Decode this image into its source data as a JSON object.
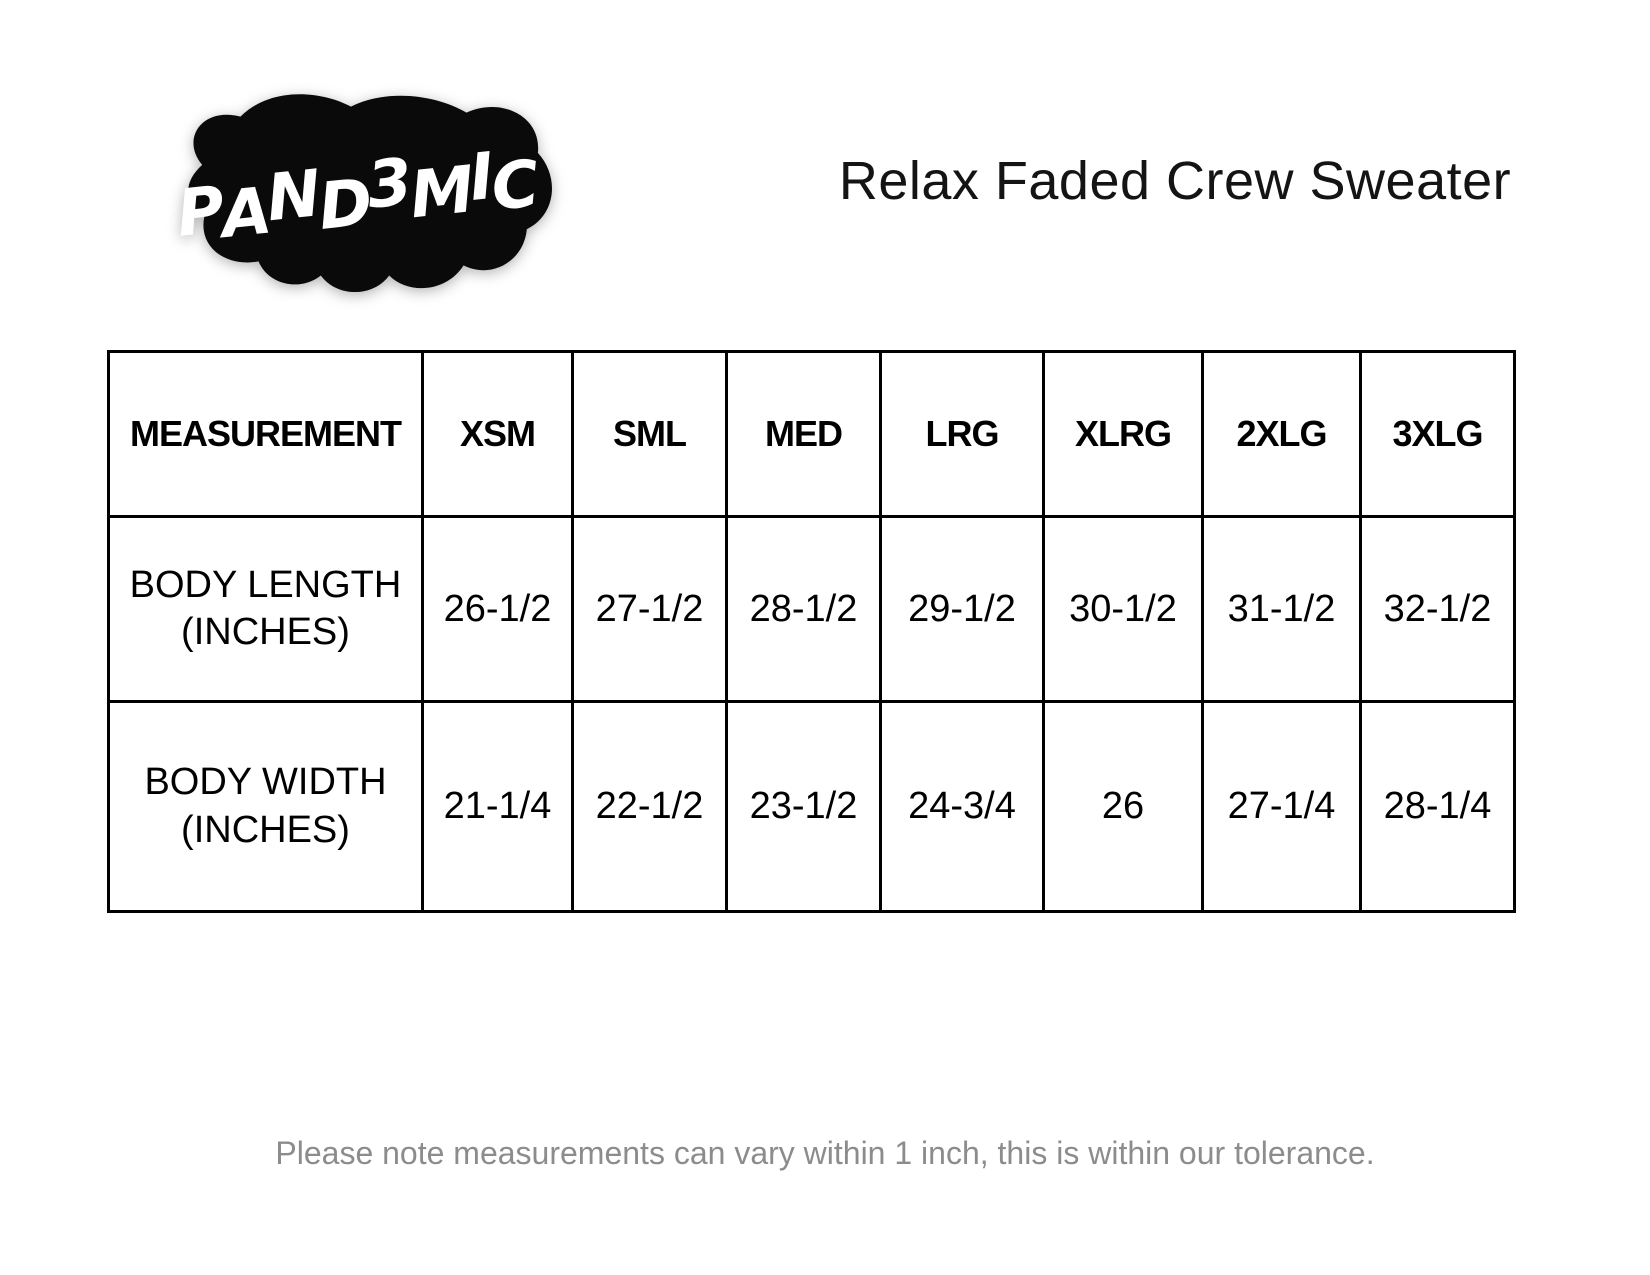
{
  "page": {
    "background": "#ffffff"
  },
  "brand": {
    "logo_text": "PAND3MIC",
    "logo_shape_color": "#0a0a0a",
    "logo_text_color": "#ffffff"
  },
  "header": {
    "title": "Relax Faded Crew Sweater",
    "title_color": "#141414"
  },
  "size_chart": {
    "border_color": "#000000",
    "text_color": "#000000",
    "columns": [
      "MEASUREMENT",
      "XSM",
      "SML",
      "MED",
      "LRG",
      "XLRG",
      "2XLG",
      "3XLG"
    ],
    "rows": [
      {
        "label": "BODY LENGTH (INCHES)",
        "label_lines": [
          "BODY LENGTH",
          "(INCHES)"
        ],
        "values": [
          "26-1/2",
          "27-1/2",
          "28-1/2",
          "29-1/2",
          "30-1/2",
          "31-1/2",
          "32-1/2"
        ]
      },
      {
        "label": "BODY WIDTH (INCHES)",
        "label_lines": [
          "BODY WIDTH",
          "(INCHES)"
        ],
        "values": [
          "21-1/4",
          "22-1/2",
          "23-1/2",
          "24-3/4",
          "26",
          "27-1/4",
          "28-1/4"
        ]
      }
    ]
  },
  "footer": {
    "note": "Please note measurements can vary within 1 inch, this is within our tolerance.",
    "note_color": "#8c8c8c"
  }
}
